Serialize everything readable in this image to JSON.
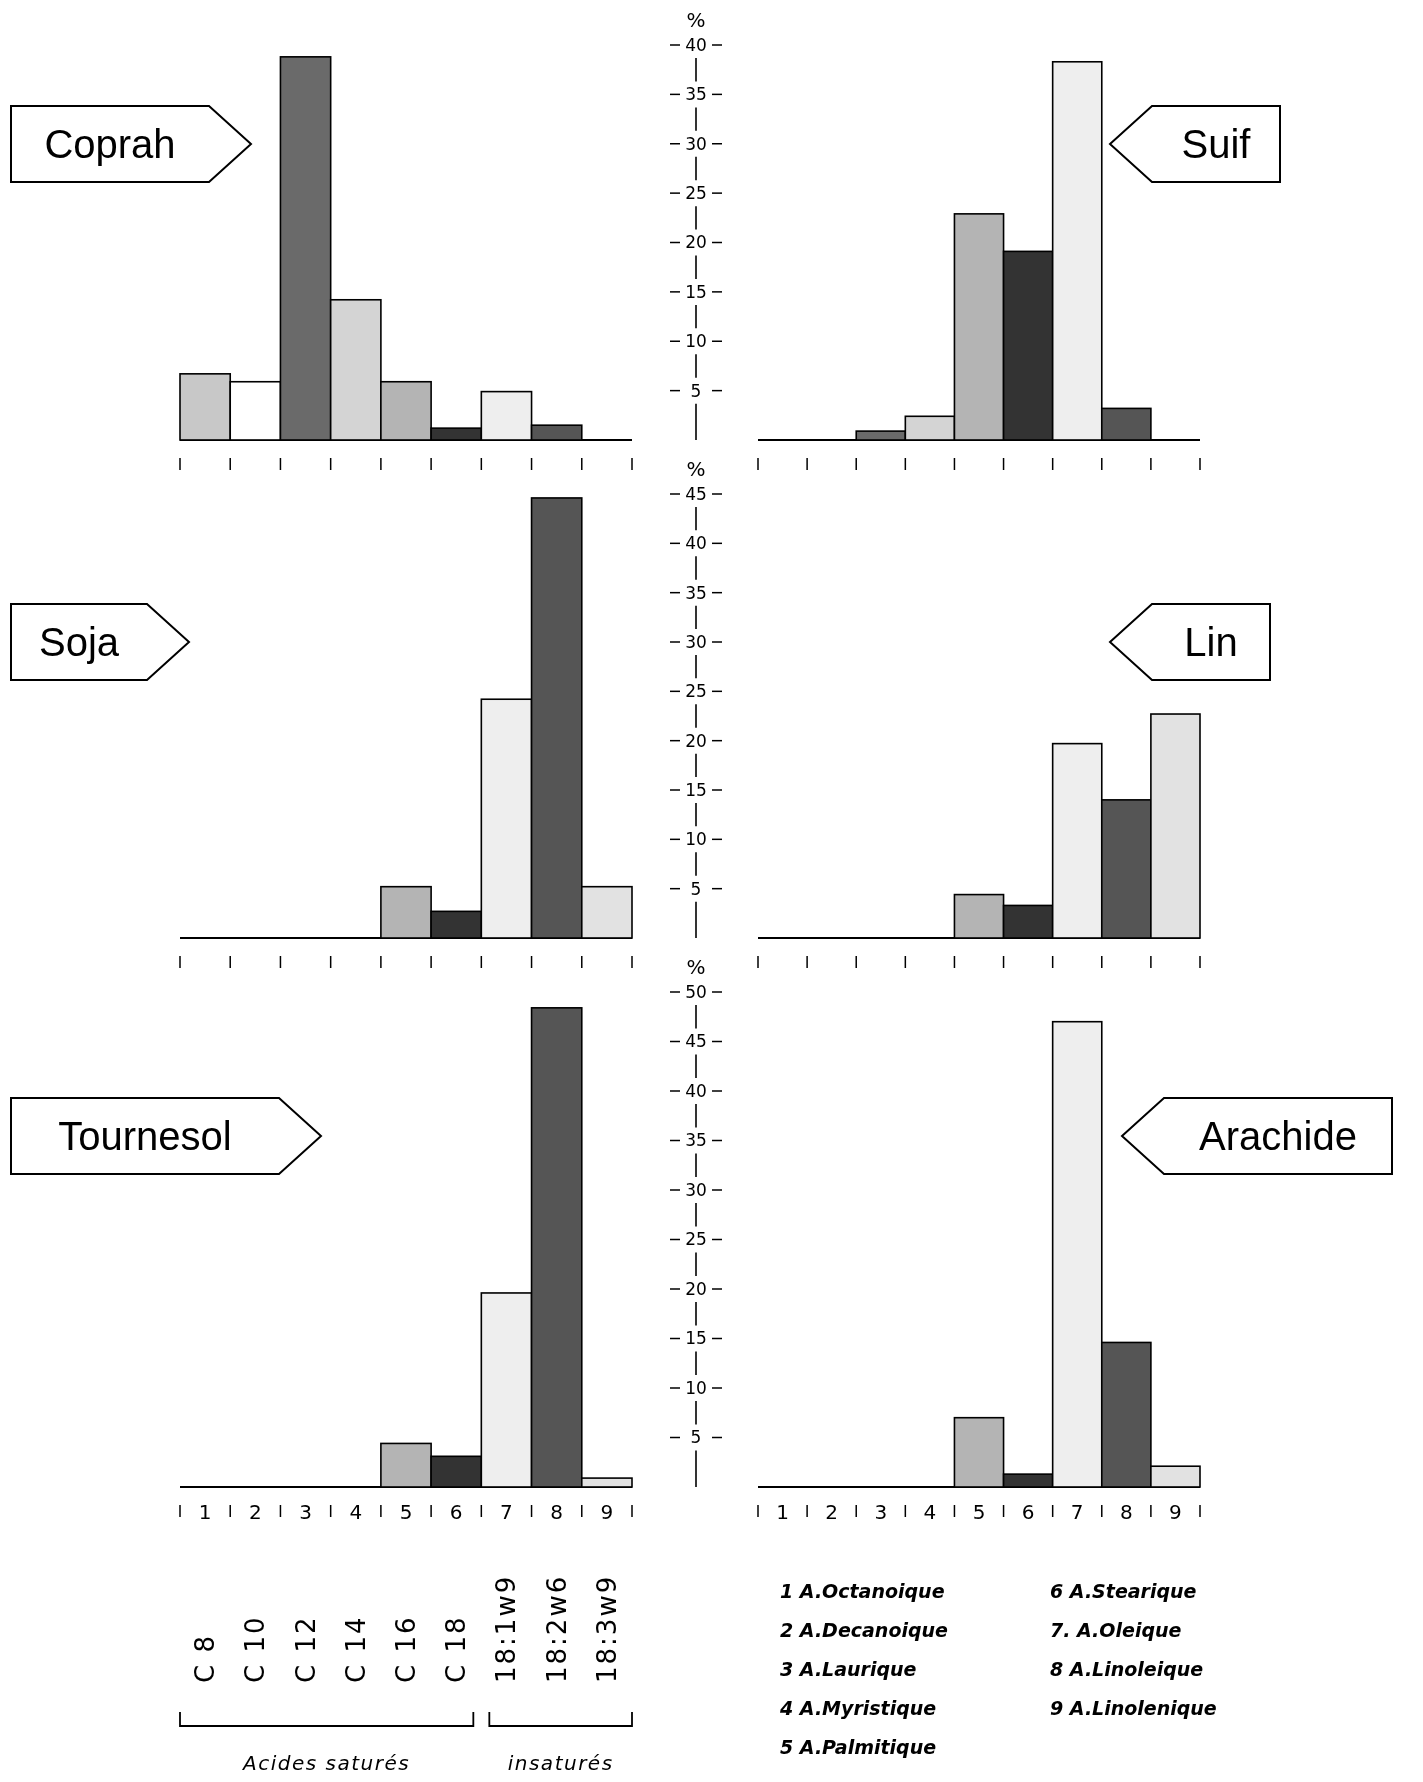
{
  "chart_data": [
    {
      "type": "bar",
      "title": "Coprah",
      "categories": [
        null,
        null,
        null,
        null,
        null,
        null,
        null,
        null,
        null
      ],
      "values": [
        6.7,
        5.9,
        38.8,
        14.2,
        5.9,
        1.2,
        4.9,
        1.5,
        0
      ],
      "colors": [
        "#c8c8c8",
        "#ffffff",
        "#6a6a6a",
        "#d4d4d4",
        "#b4b4b4",
        "#333333",
        "#eeeeee",
        "#555555",
        "#e2e2e2"
      ],
      "ylim": [
        0,
        40
      ],
      "tick_labels": false
    },
    {
      "type": "bar",
      "title": "Suif",
      "ylabel": "%",
      "categories": [
        null,
        null,
        null,
        null,
        null,
        null,
        null,
        null,
        null
      ],
      "values": [
        0,
        0,
        0.9,
        2.4,
        22.9,
        19.1,
        38.3,
        3.2,
        0
      ],
      "colors": [
        "#c8c8c8",
        "#ffffff",
        "#6a6a6a",
        "#d4d4d4",
        "#b4b4b4",
        "#333333",
        "#eeeeee",
        "#555555",
        "#e2e2e2"
      ],
      "ylim": [
        0,
        40
      ],
      "yticks": [
        5,
        10,
        15,
        20,
        25,
        30,
        35,
        40
      ],
      "tick_labels": "y"
    },
    {
      "type": "bar",
      "title": "Soja",
      "categories": [
        null,
        null,
        null,
        null,
        null,
        null,
        null,
        null,
        null
      ],
      "values": [
        0,
        0,
        0,
        0,
        5.2,
        2.7,
        24.2,
        44.6,
        5.2
      ],
      "colors": [
        "#c8c8c8",
        "#ffffff",
        "#6a6a6a",
        "#d4d4d4",
        "#b4b4b4",
        "#333333",
        "#eeeeee",
        "#555555",
        "#e2e2e2"
      ],
      "ylim": [
        0,
        45
      ],
      "tick_labels": false
    },
    {
      "type": "bar",
      "title": "Lin",
      "ylabel": "%",
      "categories": [
        null,
        null,
        null,
        null,
        null,
        null,
        null,
        null,
        null
      ],
      "values": [
        0,
        0,
        0,
        0,
        4.4,
        3.3,
        19.7,
        14.0,
        22.7
      ],
      "colors": [
        "#c8c8c8",
        "#ffffff",
        "#6a6a6a",
        "#d4d4d4",
        "#b4b4b4",
        "#333333",
        "#eeeeee",
        "#555555",
        "#e2e2e2"
      ],
      "ylim": [
        0,
        45
      ],
      "yticks": [
        5,
        10,
        15,
        20,
        25,
        30,
        35,
        40,
        45
      ],
      "tick_labels": "y"
    },
    {
      "type": "bar",
      "title": "Tournesol",
      "categories": [
        "1",
        "2",
        "3",
        "4",
        "5",
        "6",
        "7",
        "8",
        "9"
      ],
      "values": [
        0,
        0,
        0,
        0,
        4.4,
        3.1,
        19.6,
        48.4,
        0.9
      ],
      "colors": [
        "#c8c8c8",
        "#ffffff",
        "#6a6a6a",
        "#d4d4d4",
        "#b4b4b4",
        "#333333",
        "#eeeeee",
        "#555555",
        "#e2e2e2"
      ],
      "ylim": [
        0,
        50
      ],
      "tick_labels": "x",
      "annotations": [
        "C 8",
        "C 10",
        "C 12",
        "C 14",
        "C 16",
        "C 18",
        "18:1w9",
        "18:2w6",
        "18:3w9",
        "Acides saturés",
        "insaturés"
      ]
    },
    {
      "type": "bar",
      "title": "Arachide",
      "ylabel": "%",
      "categories": [
        "1",
        "2",
        "3",
        "4",
        "5",
        "6",
        "7",
        "8",
        "9"
      ],
      "values": [
        0,
        0,
        0,
        0,
        7.0,
        1.3,
        47.0,
        14.6,
        2.1
      ],
      "colors": [
        "#c8c8c8",
        "#ffffff",
        "#6a6a6a",
        "#d4d4d4",
        "#b4b4b4",
        "#333333",
        "#eeeeee",
        "#555555",
        "#e2e2e2"
      ],
      "ylim": [
        0,
        50
      ],
      "yticks": [
        5,
        10,
        15,
        20,
        25,
        30,
        35,
        40,
        45,
        50
      ],
      "annotations": [
        "1  A.Octanoique",
        "2  A.Decanoique",
        "3  A.Laurique",
        "4  A.Myristique",
        "5  A.Palmitique",
        "6  A.Stearique",
        "7.  A.Oleique",
        "8  A.Linoleique",
        "9  A.Linolenique"
      ]
    }
  ]
}
